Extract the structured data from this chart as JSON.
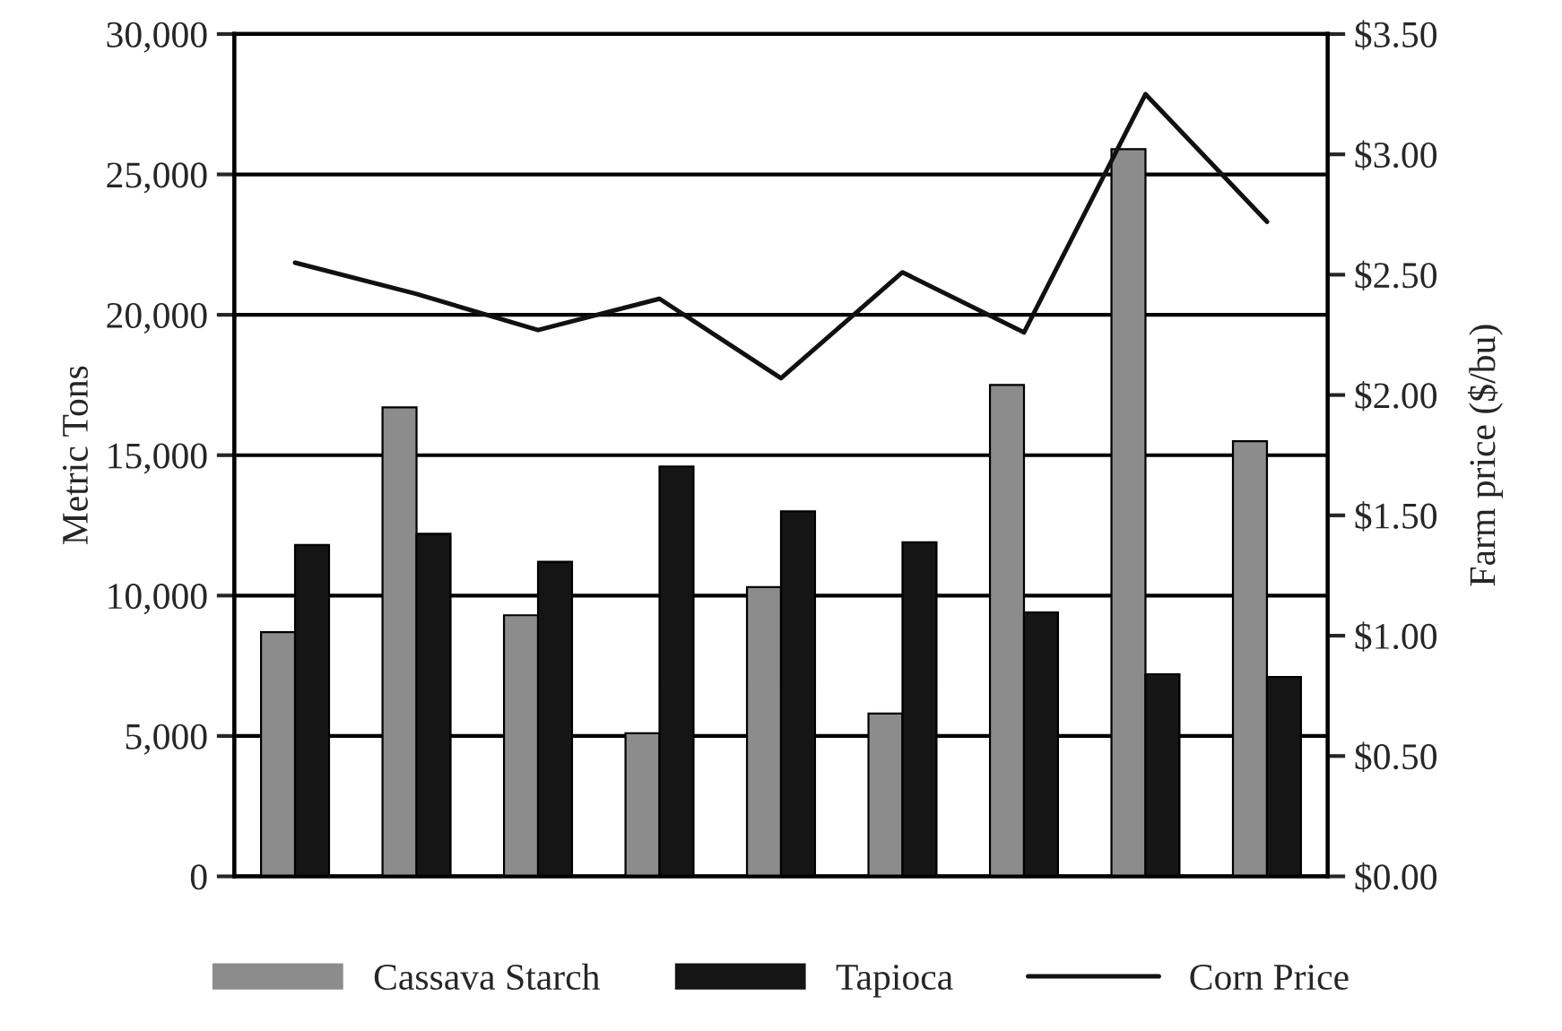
{
  "chart_data": {
    "type": "bar",
    "ylabel": "Metric Tons",
    "y2label": "Farm price ($/bu)",
    "categories": [
      null,
      null,
      null,
      null,
      null,
      null,
      null,
      null,
      null
    ],
    "series": [
      {
        "name": "Cassava Starch",
        "color": "#8c8c8c",
        "values": [
          8700,
          16700,
          9300,
          5100,
          10300,
          5800,
          17500,
          25900,
          15500
        ]
      },
      {
        "name": "Tapioca",
        "color": "#151515",
        "values": [
          11800,
          12200,
          11200,
          14600,
          13000,
          11900,
          9400,
          7200,
          7100
        ]
      },
      {
        "name": "Corn Price",
        "type": "line",
        "axis": "y2",
        "color": "#111111",
        "values": [
          2.55,
          2.42,
          2.27,
          2.4,
          2.07,
          2.51,
          2.26,
          3.25,
          2.72
        ]
      }
    ],
    "ylim": [
      0,
      30000
    ],
    "yticks": [
      {
        "value": 0,
        "label": "0"
      },
      {
        "value": 5000,
        "label": "5,000"
      },
      {
        "value": 10000,
        "label": "10,000"
      },
      {
        "value": 15000,
        "label": "15,000"
      },
      {
        "value": 20000,
        "label": "20,000"
      },
      {
        "value": 25000,
        "label": "25,000"
      },
      {
        "value": 30000,
        "label": "30,000"
      }
    ],
    "y2lim": [
      0,
      3.5
    ],
    "y2ticks": [
      {
        "value": 0,
        "label": "$0.00"
      },
      {
        "value": 0.5,
        "label": "$0.50"
      },
      {
        "value": 1,
        "label": "$1.00"
      },
      {
        "value": 1.5,
        "label": "$1.50"
      },
      {
        "value": 2,
        "label": "$2.00"
      },
      {
        "value": 2.5,
        "label": "$2.50"
      },
      {
        "value": 3,
        "label": "$3.00"
      },
      {
        "value": 3.5,
        "label": "$3.50"
      }
    ],
    "grid": "y",
    "legend": "bottom",
    "marker": "none",
    "line_style": "solid"
  }
}
